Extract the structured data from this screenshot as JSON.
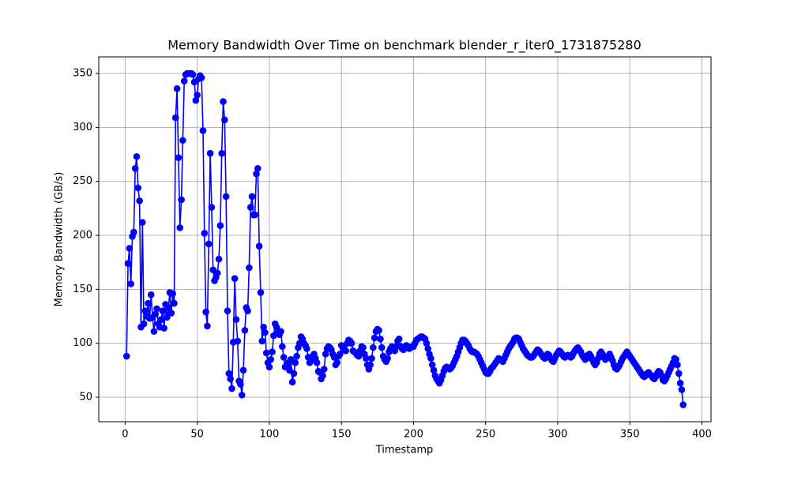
{
  "chart_data": {
    "type": "line",
    "title": "Memory Bandwidth Over Time on benchmark blender_r_iter0_1731875280",
    "x_label": "Timestamp",
    "y_label": "Memory Bandwidth (GB/s)",
    "color": "#0000ff",
    "grid": true,
    "xlim": [
      -18.3,
      406.3
    ],
    "ylim": [
      27.3,
      365.4
    ],
    "xticks": [
      0,
      50,
      100,
      150,
      200,
      250,
      300,
      350,
      400
    ],
    "yticks": [
      50,
      100,
      150,
      200,
      250,
      300,
      350
    ],
    "x": [
      1,
      2,
      3,
      4,
      5,
      6,
      7,
      8,
      9,
      10,
      11,
      12,
      13,
      14,
      15,
      16,
      17,
      18,
      19,
      20,
      21,
      22,
      23,
      24,
      25,
      26,
      27,
      28,
      29,
      30,
      31,
      32,
      33,
      34,
      35,
      36,
      37,
      38,
      39,
      40,
      41,
      42,
      43,
      44,
      45,
      46,
      47,
      48,
      49,
      50,
      51,
      52,
      53,
      54,
      55,
      56,
      57,
      58,
      59,
      60,
      61,
      62,
      63,
      64,
      65,
      66,
      67,
      68,
      69,
      70,
      71,
      72,
      73,
      74,
      75,
      76,
      77,
      78,
      79,
      80,
      81,
      82,
      83,
      84,
      85,
      86,
      87,
      88,
      89,
      90,
      91,
      92,
      93,
      94,
      95,
      96,
      97,
      98,
      99,
      100,
      101,
      102,
      103,
      104,
      105,
      106,
      107,
      108,
      109,
      110,
      111,
      112,
      113,
      114,
      115,
      116,
      117,
      118,
      119,
      120,
      121,
      122,
      123,
      124,
      125,
      126,
      127,
      128,
      129,
      130,
      131,
      132,
      133,
      134,
      135,
      136,
      137,
      138,
      139,
      140,
      141,
      142,
      143,
      144,
      145,
      146,
      147,
      148,
      149,
      150,
      151,
      152,
      153,
      154,
      155,
      156,
      157,
      158,
      159,
      160,
      161,
      162,
      163,
      164,
      165,
      166,
      167,
      168,
      169,
      170,
      171,
      172,
      173,
      174,
      175,
      176,
      177,
      178,
      179,
      180,
      181,
      182,
      183,
      184,
      185,
      186,
      187,
      188,
      189,
      190,
      191,
      192,
      193,
      194,
      195,
      196,
      197,
      198,
      199,
      200,
      201,
      202,
      203,
      204,
      205,
      206,
      207,
      208,
      209,
      210,
      211,
      212,
      213,
      214,
      215,
      216,
      217,
      218,
      219,
      220,
      221,
      222,
      223,
      224,
      225,
      226,
      227,
      228,
      229,
      230,
      231,
      232,
      233,
      234,
      235,
      236,
      237,
      238,
      239,
      240,
      241,
      242,
      243,
      244,
      245,
      246,
      247,
      248,
      249,
      250,
      251,
      252,
      253,
      254,
      255,
      256,
      257,
      258,
      259,
      260,
      261,
      262,
      263,
      264,
      265,
      266,
      267,
      268,
      269,
      270,
      271,
      272,
      273,
      274,
      275,
      276,
      277,
      278,
      279,
      280,
      281,
      282,
      283,
      284,
      285,
      286,
      287,
      288,
      289,
      290,
      291,
      292,
      293,
      294,
      295,
      296,
      297,
      298,
      299,
      300,
      301,
      302,
      303,
      304,
      305,
      306,
      307,
      308,
      309,
      310,
      311,
      312,
      313,
      314,
      315,
      316,
      317,
      318,
      319,
      320,
      321,
      322,
      323,
      324,
      325,
      326,
      327,
      328,
      329,
      330,
      331,
      332,
      333,
      334,
      335,
      336,
      337,
      338,
      339,
      340,
      341,
      342,
      343,
      344,
      345,
      346,
      347,
      348,
      349,
      350,
      351,
      352,
      353,
      354,
      355,
      356,
      357,
      358,
      359,
      360,
      361,
      362,
      363,
      364,
      365,
      366,
      367,
      368,
      369,
      370,
      371,
      372,
      373,
      374,
      375,
      376,
      377,
      378,
      379,
      380,
      381,
      382,
      383,
      384,
      385,
      386,
      387
    ],
    "values": [
      88,
      174,
      188,
      155,
      199,
      203,
      262,
      273,
      244,
      232,
      115,
      212,
      118,
      130,
      125,
      137,
      123,
      145,
      124,
      111,
      127,
      132,
      118,
      115,
      122,
      130,
      114,
      136,
      124,
      133,
      147,
      128,
      146,
      137,
      309,
      336,
      272,
      207,
      233,
      288,
      343,
      349,
      350,
      350,
      350,
      350,
      349,
      342,
      325,
      330,
      345,
      348,
      346,
      297,
      202,
      129,
      116,
      192,
      276,
      226,
      168,
      158,
      161,
      165,
      178,
      209,
      276,
      324,
      307,
      236,
      130,
      72,
      67,
      58,
      101,
      160,
      122,
      102,
      65,
      62,
      52,
      75,
      112,
      133,
      130,
      170,
      226,
      236,
      219,
      219,
      257,
      262,
      190,
      147,
      102,
      115,
      110,
      91,
      82,
      78,
      85,
      92,
      107,
      118,
      115,
      110,
      108,
      111,
      97,
      87,
      78,
      80,
      82,
      75,
      85,
      64,
      72,
      82,
      88,
      96,
      100,
      106,
      104,
      100,
      98,
      95,
      87,
      82,
      84,
      88,
      90,
      86,
      82,
      74,
      73,
      67,
      70,
      76,
      90,
      95,
      97,
      96,
      94,
      90,
      87,
      80,
      82,
      88,
      90,
      98,
      96,
      94,
      93,
      100,
      103,
      102,
      100,
      93,
      92,
      91,
      89,
      88,
      93,
      97,
      96,
      90,
      86,
      80,
      76,
      80,
      86,
      96,
      105,
      111,
      113,
      112,
      104,
      96,
      88,
      85,
      83,
      86,
      92,
      95,
      97,
      96,
      93,
      97,
      102,
      104,
      97,
      95,
      94,
      96,
      98,
      97,
      95,
      96,
      97,
      97,
      100,
      103,
      104,
      105,
      106,
      106,
      105,
      104,
      100,
      95,
      90,
      86,
      80,
      75,
      70,
      67,
      65,
      63,
      66,
      70,
      74,
      77,
      78,
      77,
      76,
      77,
      79,
      82,
      85,
      88,
      92,
      96,
      100,
      103,
      103,
      102,
      100,
      98,
      95,
      93,
      92,
      92,
      91,
      90,
      88,
      85,
      82,
      79,
      76,
      73,
      72,
      72,
      74,
      77,
      78,
      80,
      82,
      84,
      86,
      85,
      84,
      83,
      86,
      89,
      92,
      95,
      97,
      99,
      101,
      104,
      105,
      105,
      104,
      101,
      98,
      95,
      93,
      91,
      89,
      88,
      87,
      87,
      88,
      90,
      92,
      94,
      93,
      91,
      89,
      87,
      86,
      88,
      90,
      89,
      86,
      84,
      83,
      86,
      89,
      91,
      93,
      92,
      90,
      88,
      87,
      88,
      89,
      88,
      87,
      88,
      91,
      93,
      95,
      96,
      94,
      92,
      89,
      87,
      85,
      86,
      89,
      90,
      88,
      85,
      82,
      80,
      82,
      86,
      90,
      92,
      90,
      87,
      85,
      86,
      88,
      90,
      87,
      84,
      80,
      77,
      76,
      78,
      80,
      83,
      86,
      88,
      90,
      92,
      90,
      88,
      86,
      84,
      82,
      80,
      78,
      76,
      74,
      72,
      70,
      69,
      70,
      72,
      73,
      71,
      70,
      68,
      67,
      69,
      72,
      74,
      73,
      70,
      66,
      65,
      67,
      70,
      73,
      76,
      79,
      82,
      86,
      85,
      80,
      72,
      63,
      57,
      43
    ]
  }
}
